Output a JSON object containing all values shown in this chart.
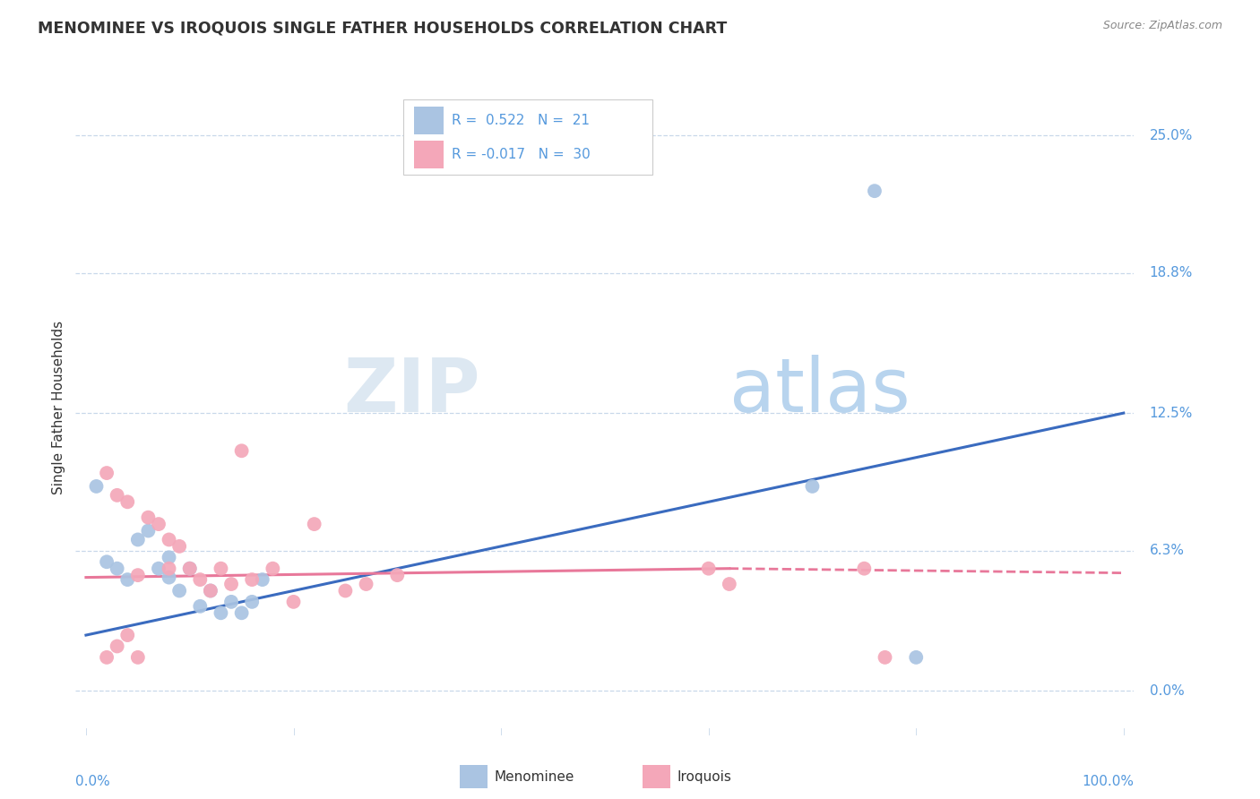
{
  "title": "MENOMINEE VS IROQUOIS SINGLE FATHER HOUSEHOLDS CORRELATION CHART",
  "source": "Source: ZipAtlas.com",
  "ylabel": "Single Father Households",
  "ytick_labels": [
    "0.0%",
    "6.3%",
    "12.5%",
    "18.8%",
    "25.0%"
  ],
  "ytick_values": [
    0.0,
    6.3,
    12.5,
    18.8,
    25.0
  ],
  "menominee_color": "#aac4e2",
  "iroquois_color": "#f4a7b9",
  "menominee_line_color": "#3a6bbf",
  "iroquois_line_color": "#e8789a",
  "background_color": "#ffffff",
  "grid_color": "#c8d8ea",
  "menominee_points": [
    [
      1,
      9.2
    ],
    [
      2,
      5.8
    ],
    [
      3,
      5.5
    ],
    [
      4,
      5.0
    ],
    [
      5,
      6.8
    ],
    [
      6,
      7.2
    ],
    [
      7,
      5.5
    ],
    [
      8,
      5.1
    ],
    [
      8,
      6.0
    ],
    [
      9,
      4.5
    ],
    [
      10,
      5.5
    ],
    [
      11,
      3.8
    ],
    [
      12,
      4.5
    ],
    [
      13,
      3.5
    ],
    [
      14,
      4.0
    ],
    [
      15,
      3.5
    ],
    [
      16,
      4.0
    ],
    [
      17,
      5.0
    ],
    [
      70,
      9.2
    ],
    [
      76,
      22.5
    ],
    [
      80,
      1.5
    ]
  ],
  "iroquois_points": [
    [
      2,
      9.8
    ],
    [
      3,
      8.8
    ],
    [
      4,
      8.5
    ],
    [
      5,
      5.2
    ],
    [
      6,
      7.8
    ],
    [
      7,
      7.5
    ],
    [
      8,
      6.8
    ],
    [
      8,
      5.5
    ],
    [
      9,
      6.5
    ],
    [
      10,
      5.5
    ],
    [
      11,
      5.0
    ],
    [
      12,
      4.5
    ],
    [
      13,
      5.5
    ],
    [
      14,
      4.8
    ],
    [
      15,
      10.8
    ],
    [
      16,
      5.0
    ],
    [
      18,
      5.5
    ],
    [
      20,
      4.0
    ],
    [
      22,
      7.5
    ],
    [
      25,
      4.5
    ],
    [
      27,
      4.8
    ],
    [
      30,
      5.2
    ],
    [
      60,
      5.5
    ],
    [
      62,
      4.8
    ],
    [
      75,
      5.5
    ],
    [
      77,
      1.5
    ],
    [
      2,
      1.5
    ],
    [
      3,
      2.0
    ],
    [
      4,
      2.5
    ],
    [
      5,
      1.5
    ]
  ],
  "men_line": [
    [
      0,
      2.5
    ],
    [
      100,
      12.5
    ]
  ],
  "iro_line_solid": [
    [
      0,
      5.1
    ],
    [
      62,
      5.5
    ]
  ],
  "iro_line_dashed": [
    [
      62,
      5.5
    ],
    [
      100,
      5.3
    ]
  ]
}
